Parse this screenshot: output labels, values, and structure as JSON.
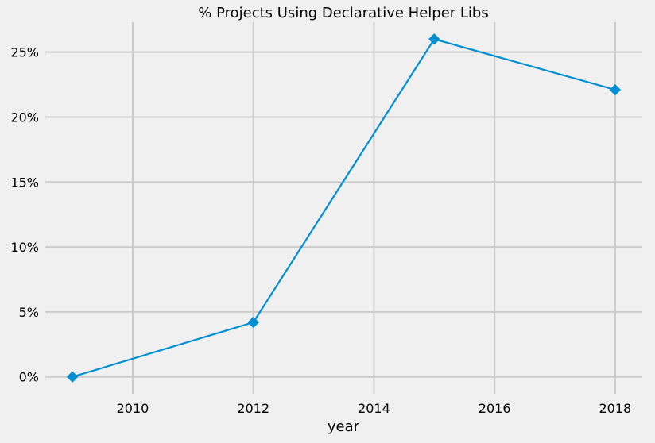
{
  "chart_data": {
    "type": "line",
    "title": "% Projects Using Declarative Helper Libs",
    "xlabel": "year",
    "ylabel": "",
    "x": [
      2009,
      2012,
      2015,
      2018
    ],
    "series": [
      {
        "values": [
          0.0,
          4.2,
          26.0,
          22.1
        ],
        "color": "#008fd5",
        "marker": "diamond"
      }
    ],
    "xlim": [
      2008.55,
      2018.45
    ],
    "ylim": [
      -1.3,
      27.3
    ],
    "xticks": [
      2010,
      2012,
      2014,
      2016,
      2018
    ],
    "xtick_labels": [
      "2010",
      "2012",
      "2014",
      "2016",
      "2018"
    ],
    "yticks": [
      0,
      5,
      10,
      15,
      20,
      25
    ],
    "ytick_labels": [
      "0%",
      "5%",
      "10%",
      "15%",
      "20%",
      "25%"
    ],
    "grid": true,
    "background": "#f0f0f0",
    "grid_color": "#cbcbcb"
  }
}
